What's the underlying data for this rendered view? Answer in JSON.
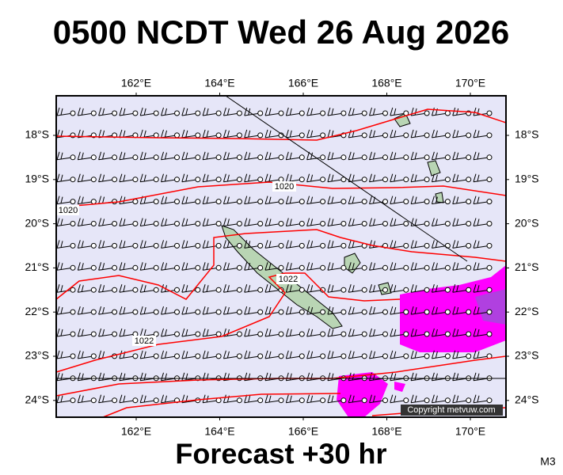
{
  "title": "0500 NCDT Wed 26 Aug 2026",
  "map": {
    "lon_labels": [
      "162°E",
      "164°E",
      "166°E",
      "168°E",
      "170°E"
    ],
    "lat_labels": [
      "18°S",
      "19°S",
      "20°S",
      "21°S",
      "22°S",
      "23°S",
      "24°S"
    ],
    "isobar_labels": [
      "1020",
      "1020",
      "1022",
      "1022"
    ],
    "copyright": "Copyright metvuw.com"
  },
  "footer": {
    "forecast": "Forecast +30 hr",
    "model": "M3"
  }
}
